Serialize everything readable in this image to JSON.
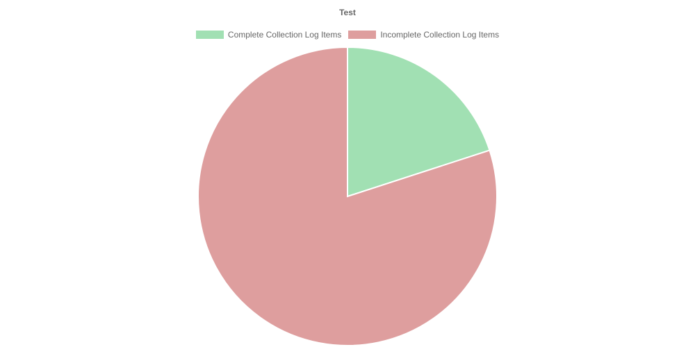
{
  "chart_data": {
    "type": "pie",
    "title": "Test",
    "legend_position": "top",
    "categories": [
      "Complete Collection Log Items",
      "Incomplete Collection Log Items"
    ],
    "values": [
      20,
      80
    ],
    "colors": [
      "#a1e0b3",
      "#de9e9e"
    ]
  }
}
